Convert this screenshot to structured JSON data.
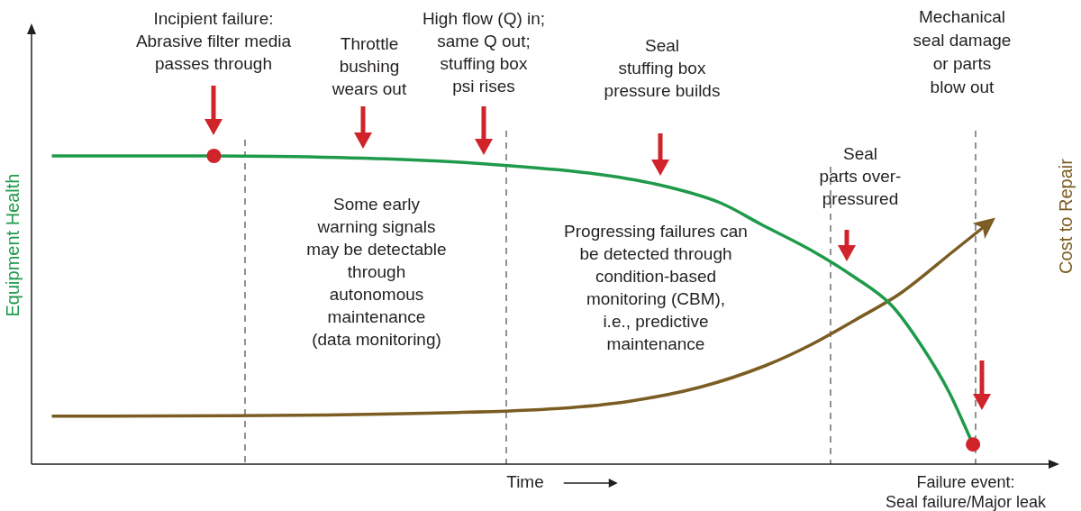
{
  "chart_data": {
    "type": "line",
    "xlabel": "Time",
    "ylabel": "Equipment Health",
    "y2label": "Cost to Repair",
    "xlim": [
      0,
      100
    ],
    "ylim": [
      0,
      100
    ],
    "y2lim": [
      0,
      100
    ],
    "tick_labels": false,
    "grid": false,
    "series": [
      {
        "name": "Equipment Health",
        "color": "#1f9a4b",
        "axis": "y",
        "x": [
          2,
          18,
          24,
          35,
          44.9,
          55,
          61.8,
          68,
          72,
          76.9,
          81,
          84.9,
          88,
          90.5,
          92.9
        ],
        "values": [
          72,
          72,
          71.9,
          71.3,
          70.1,
          68,
          65.3,
          61,
          56,
          50,
          44,
          37,
          27,
          17,
          4.6
        ]
      },
      {
        "name": "Cost to Repair",
        "color": "#7b5d23",
        "axis": "y2",
        "x": [
          2,
          20,
          41,
          52,
          59,
          66,
          72.4,
          77,
          81.3,
          85.8,
          91.1,
          94.7
        ],
        "values": [
          11.2,
          11.3,
          12,
          13,
          14.7,
          18,
          23,
          28,
          33.7,
          40,
          50,
          56.8
        ]
      }
    ],
    "events": {
      "x": [
        18,
        92.9
      ],
      "color": "#d1232a"
    },
    "annotations": [
      {
        "lines": [
          "Incipient failure:",
          "Abrasive filter media",
          "passes through"
        ]
      },
      {
        "lines": [
          "Throttle",
          "bushing",
          "wears out"
        ]
      },
      {
        "lines": [
          "High flow (Q) in;",
          "same Q out;",
          "stuffing box",
          "psi rises"
        ]
      },
      {
        "lines": [
          "Seal",
          "stuffing box",
          "pressure builds"
        ]
      },
      {
        "lines": [
          "Seal",
          "parts over-",
          "pressured"
        ]
      },
      {
        "lines": [
          "Mechanical",
          "seal damage",
          "or parts",
          "blow out"
        ]
      },
      {
        "lines": [
          "Failure event:",
          "Seal failure/Major leak"
        ]
      }
    ],
    "phase_notes": [
      {
        "lines": [
          "Some early",
          "warning signals",
          "may be detectable",
          "through",
          "autonomous",
          "maintenance",
          "(data monitoring)"
        ]
      },
      {
        "lines": [
          "Progressing failures can",
          "be detected through",
          "condition-based",
          "monitoring (CBM),",
          "i.e., predictive",
          "maintenance"
        ]
      }
    ]
  }
}
